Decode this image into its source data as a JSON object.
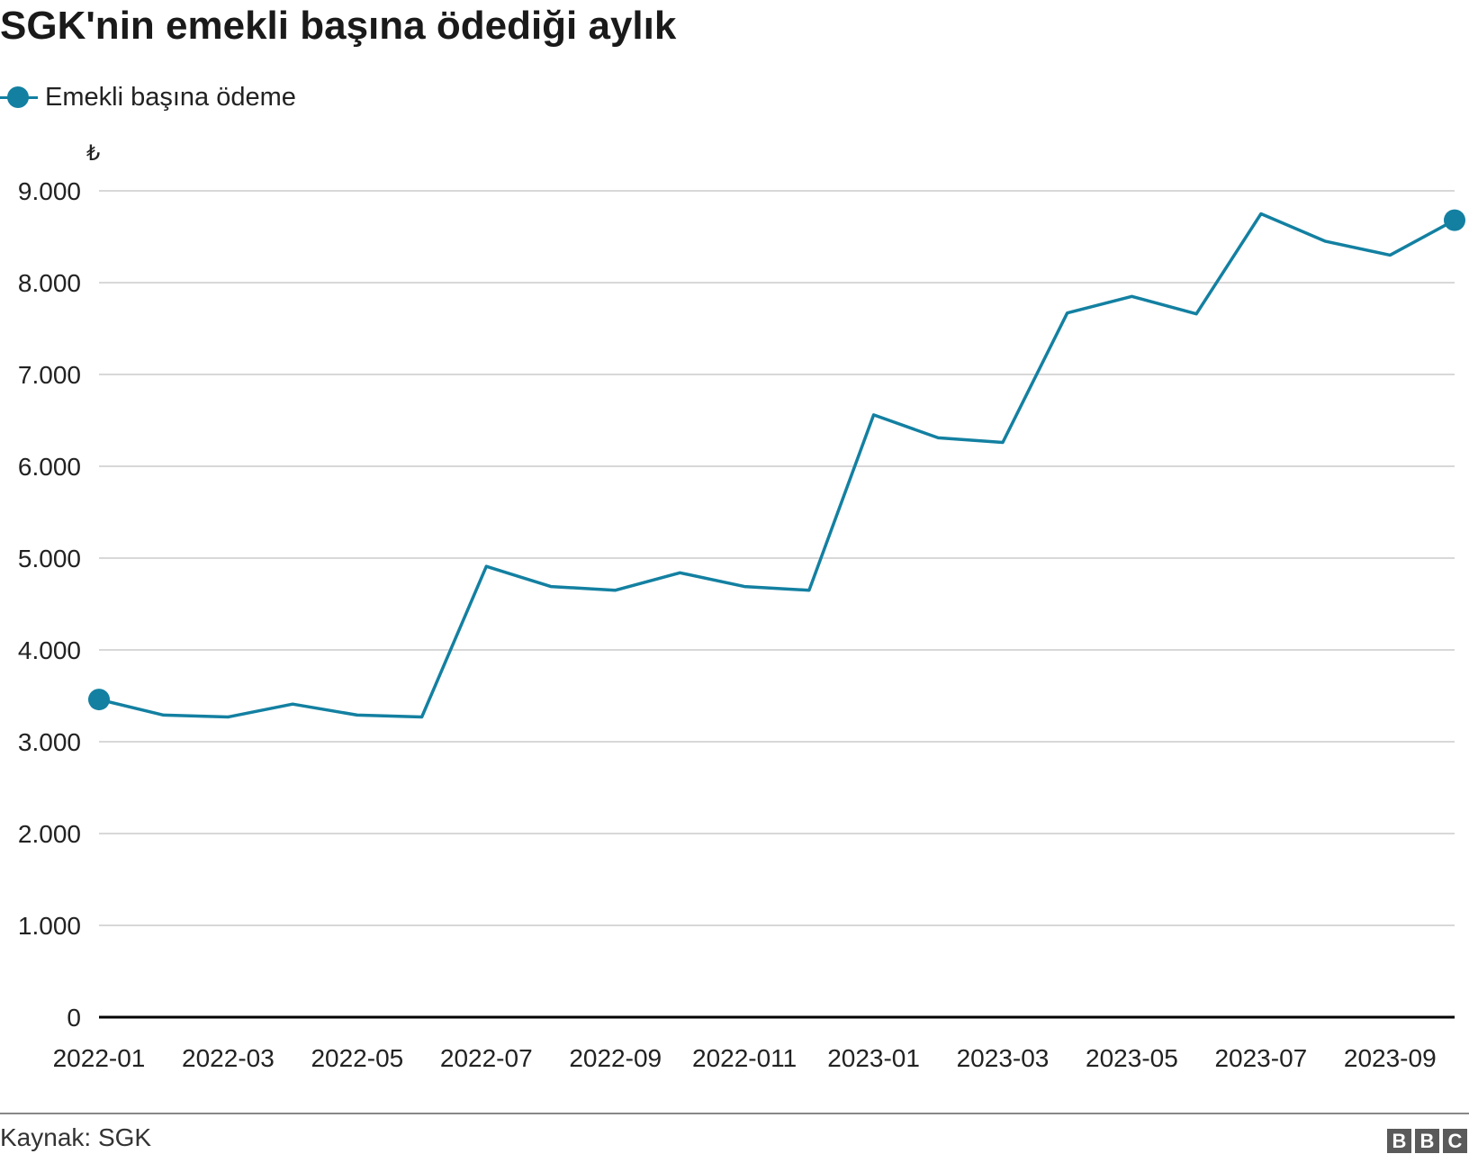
{
  "title": "SGK'nin emekli başına ödediği aylık",
  "source": "Kaynak: SGK",
  "logo": [
    "B",
    "B",
    "C"
  ],
  "colors": {
    "series": "#1380a1",
    "grid": "#cccccc",
    "axis": "#000000"
  },
  "chart_data": {
    "type": "line",
    "title": "SGK'nin emekli başına ödediği aylık",
    "ylabel": "₺",
    "ylim": [
      0,
      9000
    ],
    "yticks": [
      0,
      1000,
      2000,
      3000,
      4000,
      5000,
      6000,
      7000,
      8000,
      9000
    ],
    "ytick_labels": [
      "0",
      "1.000",
      "2.000",
      "3.000",
      "4.000",
      "5.000",
      "6.000",
      "7.000",
      "8.000",
      "9.000"
    ],
    "xtick_labels": [
      "2022-01",
      "2022-03",
      "2022-05",
      "2022-07",
      "2022-09",
      "2022-011",
      "2023-01",
      "2023-03",
      "2023-05",
      "2023-07",
      "2023-09"
    ],
    "grid": true,
    "legend_placement": "top-left",
    "x": [
      "2022-01",
      "2022-02",
      "2022-03",
      "2022-04",
      "2022-05",
      "2022-06",
      "2022-07",
      "2022-08",
      "2022-09",
      "2022-10",
      "2022-11",
      "2022-12",
      "2023-01",
      "2023-02",
      "2023-03",
      "2023-04",
      "2023-05",
      "2023-06",
      "2023-07",
      "2023-08",
      "2023-09",
      "2023-10"
    ],
    "series": [
      {
        "name": "Emekli başına ödeme",
        "values": [
          3460,
          3290,
          3270,
          3410,
          3290,
          3270,
          4910,
          4690,
          4650,
          4840,
          4690,
          4650,
          6560,
          6310,
          6260,
          7670,
          7850,
          7660,
          8750,
          8450,
          8300,
          8680
        ]
      }
    ]
  }
}
